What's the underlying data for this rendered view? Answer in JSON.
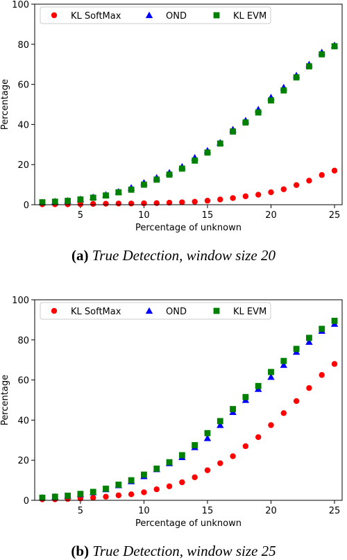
{
  "chart_data": [
    {
      "type": "scatter",
      "caption_tag": "(a)",
      "caption_text": "True Detection, window size 20",
      "xlabel": "Percentage of unknown",
      "ylabel": "Percentage",
      "xlim": [
        1.4,
        25.6
      ],
      "ylim": [
        0,
        100
      ],
      "xticks": [
        5,
        10,
        15,
        20,
        25
      ],
      "yticks": [
        0,
        20,
        40,
        60,
        80,
        100
      ],
      "legend_position": "top",
      "x": [
        2,
        3,
        4,
        5,
        6,
        7,
        8,
        9,
        10,
        11,
        12,
        13,
        14,
        15,
        16,
        17,
        18,
        19,
        20,
        21,
        22,
        23,
        24,
        25
      ],
      "series": [
        {
          "name": "KL SoftMax",
          "marker": "circle",
          "color": "#ff0000",
          "values": [
            0.2,
            0.2,
            0.2,
            0.3,
            0.4,
            0.5,
            0.6,
            0.6,
            0.7,
            0.8,
            1.0,
            1.2,
            1.5,
            2.0,
            2.6,
            3.3,
            4.2,
            5.0,
            6.2,
            7.7,
            9.8,
            12.0,
            14.8,
            17.0
          ]
        },
        {
          "name": "OND",
          "marker": "triangle",
          "color": "#0000ff",
          "values": [
            1.2,
            1.6,
            2.0,
            2.8,
            3.8,
            5.0,
            6.5,
            8.5,
            11.0,
            13.5,
            16.0,
            19.0,
            23.5,
            27.0,
            31.0,
            37.5,
            42.0,
            47.5,
            53.5,
            58.5,
            64.5,
            70.0,
            76.0,
            79.5
          ]
        },
        {
          "name": "KL EVM",
          "marker": "square",
          "color": "#008000",
          "values": [
            1.2,
            1.5,
            1.9,
            2.6,
            3.5,
            4.6,
            6.2,
            7.5,
            10.0,
            12.5,
            15.0,
            18.0,
            22.0,
            26.0,
            30.5,
            36.5,
            41.0,
            46.0,
            52.0,
            57.0,
            63.5,
            69.0,
            75.0,
            79.0
          ]
        }
      ]
    },
    {
      "type": "scatter",
      "caption_tag": "(b)",
      "caption_text": "True Detection, window size 25",
      "xlabel": "Percentage of unknown",
      "ylabel": "Percentage",
      "xlim": [
        1.4,
        25.6
      ],
      "ylim": [
        0,
        100
      ],
      "xticks": [
        5,
        10,
        15,
        20,
        25
      ],
      "yticks": [
        0,
        20,
        40,
        60,
        80,
        100
      ],
      "legend_position": "top",
      "x": [
        2,
        3,
        4,
        5,
        6,
        7,
        8,
        9,
        10,
        11,
        12,
        13,
        14,
        15,
        16,
        17,
        18,
        19,
        20,
        21,
        22,
        23,
        24,
        25
      ],
      "series": [
        {
          "name": "KL SoftMax",
          "marker": "circle",
          "color": "#ff0000",
          "values": [
            0.5,
            0.5,
            0.7,
            0.9,
            1.3,
            1.8,
            2.5,
            3.0,
            4.0,
            5.5,
            7.0,
            9.0,
            11.5,
            15.0,
            18.5,
            22.0,
            27.0,
            31.5,
            37.5,
            43.5,
            49.5,
            56.0,
            62.5,
            68.0
          ]
        },
        {
          "name": "OND",
          "marker": "triangle",
          "color": "#0000ff",
          "values": [
            1.3,
            1.8,
            2.2,
            3.0,
            4.0,
            5.5,
            7.5,
            9.5,
            12.0,
            15.5,
            18.5,
            21.5,
            26.5,
            31.0,
            37.5,
            44.0,
            50.0,
            55.5,
            61.5,
            67.5,
            74.0,
            79.0,
            84.5,
            88.0
          ]
        },
        {
          "name": "KL EVM",
          "marker": "square",
          "color": "#008000",
          "values": [
            1.3,
            1.8,
            2.3,
            3.2,
            4.2,
            5.8,
            7.8,
            10.0,
            12.8,
            15.8,
            19.0,
            22.5,
            27.5,
            33.5,
            39.5,
            45.5,
            51.5,
            57.0,
            64.0,
            69.5,
            75.5,
            81.0,
            85.5,
            89.5
          ]
        }
      ]
    }
  ]
}
